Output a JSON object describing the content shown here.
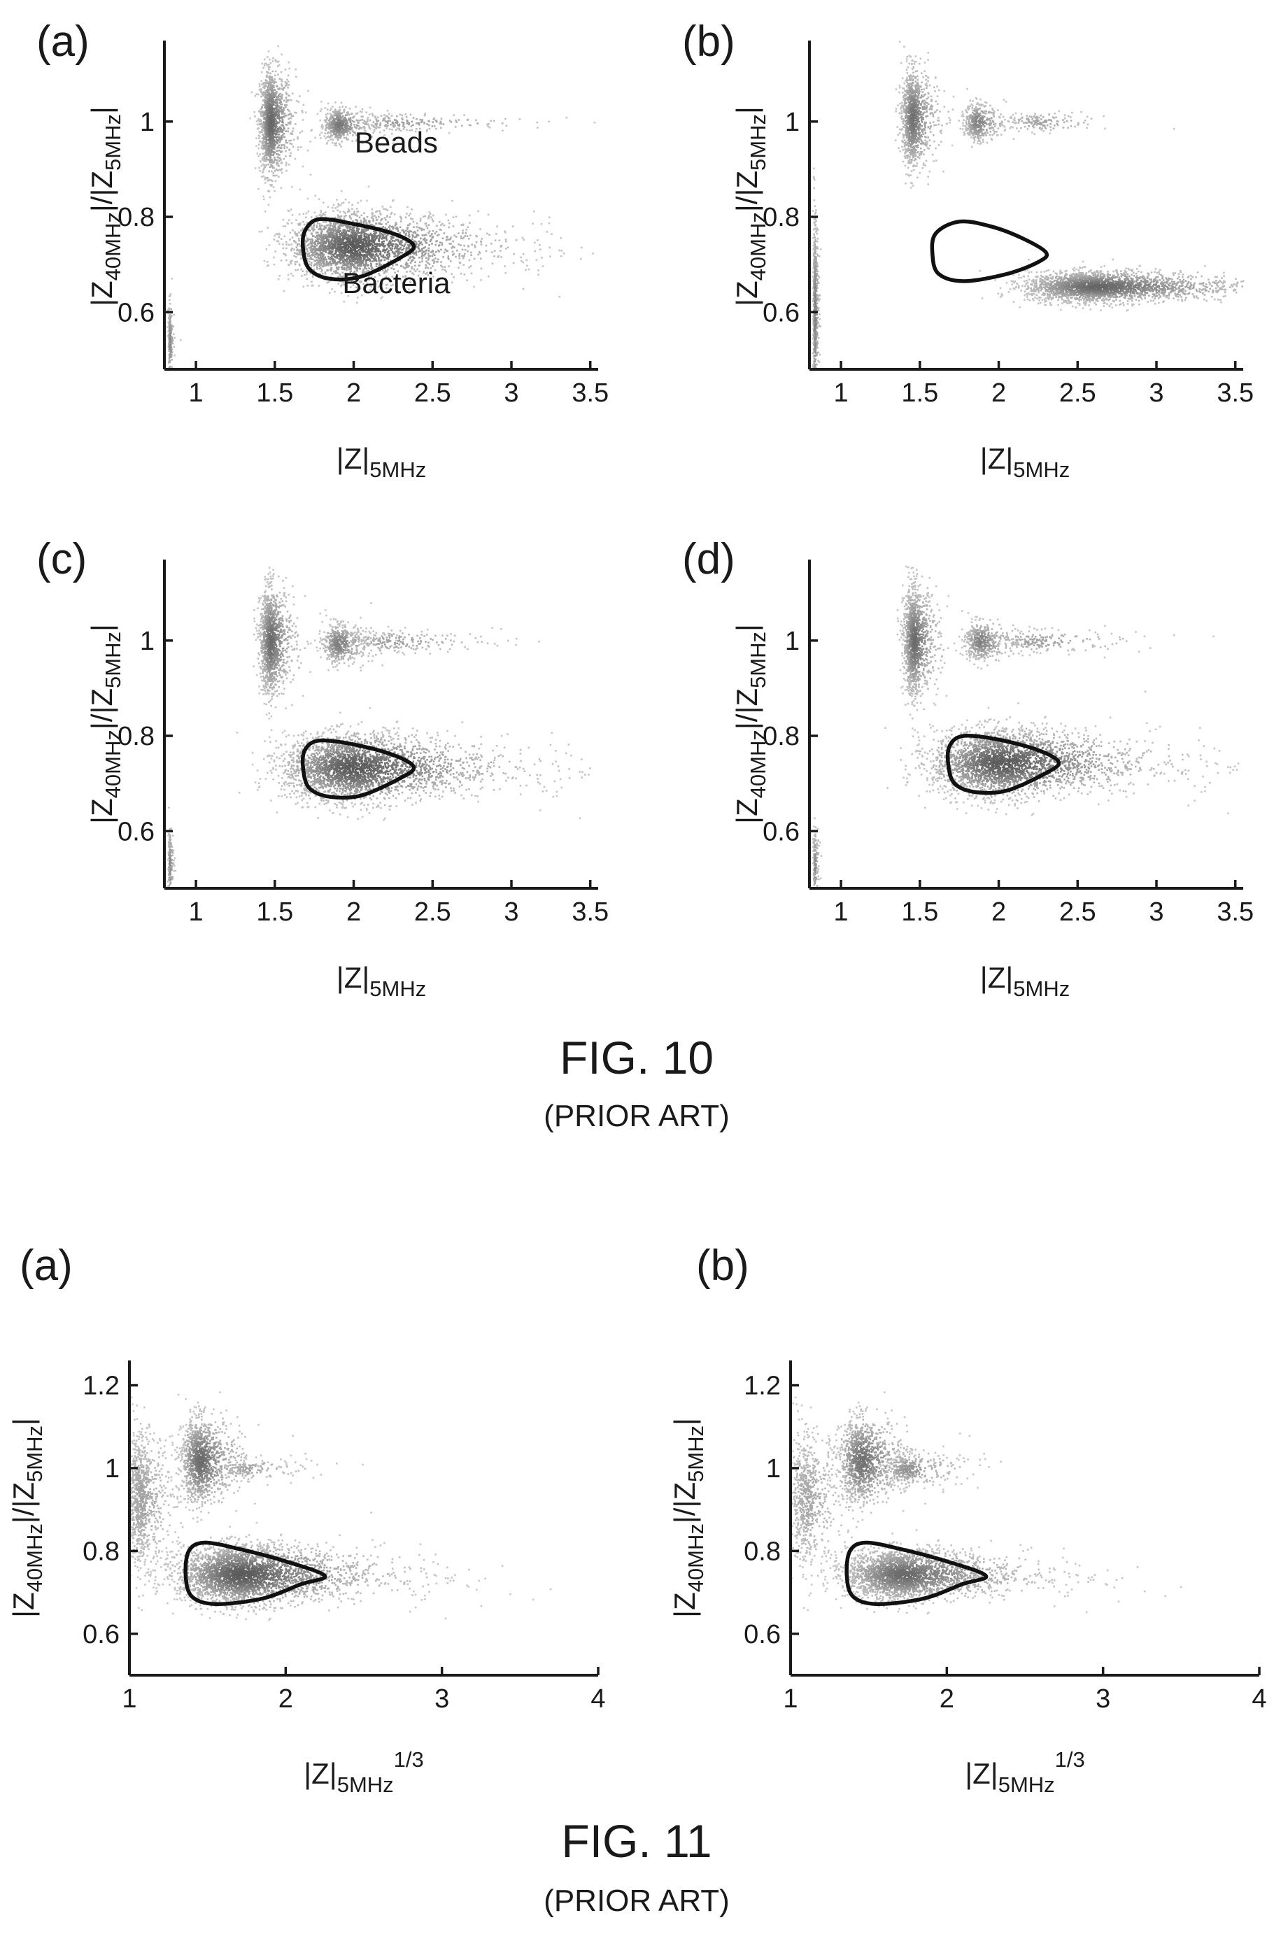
{
  "figures": [
    {
      "title": "FIG. 10",
      "subtitle": "(PRIOR ART)"
    },
    {
      "title": "FIG. 11",
      "subtitle": "(PRIOR ART)"
    }
  ],
  "chart_data": [
    {
      "id": "fig10a",
      "panel": "(a)",
      "type": "scatter",
      "xlabel": {
        "base": "|Z|",
        "sub": "5MHz",
        "sup": ""
      },
      "ylabel": {
        "base": "|Z",
        "sub1": "40MHz",
        "mid": "|/|Z",
        "sub2": "5MHz",
        "end": "|"
      },
      "xlim": [
        0.8,
        3.55
      ],
      "ylim": [
        0.48,
        1.17
      ],
      "xticks": [
        "1",
        "1.5",
        "2",
        "2.5",
        "3",
        "3.5"
      ],
      "yticks": [
        "0.6",
        "0.8",
        "1"
      ],
      "annotations": [
        {
          "text": "Beads",
          "x": 2.27,
          "y": 0.935
        },
        {
          "text": "Bacteria",
          "x": 2.27,
          "y": 0.64
        }
      ],
      "clusters": [
        {
          "label": "Beads",
          "cx": 1.47,
          "cy": 1.0,
          "sx": 0.035,
          "sy": 0.055,
          "n": 1300,
          "intensity": 0.9
        },
        {
          "label": "Beads",
          "cx": 1.9,
          "cy": 0.995,
          "sx": 0.045,
          "sy": 0.018,
          "n": 500,
          "intensity": 0.75
        },
        {
          "label": "Beads",
          "cx": 2.3,
          "cy": 1.0,
          "sx": 0.18,
          "sy": 0.01,
          "n": 200,
          "intensity": 0.4
        },
        {
          "label": "Bacteria",
          "cx": 2.0,
          "cy": 0.74,
          "sx": 0.2,
          "sy": 0.035,
          "n": 2800,
          "intensity": 1.0
        },
        {
          "label": "",
          "cx": 0.83,
          "cy": 0.54,
          "sx": 0.006,
          "sy": 0.04,
          "n": 200,
          "intensity": 0.6
        }
      ],
      "gate": [
        [
          1.72,
          0.69
        ],
        [
          1.85,
          0.67
        ],
        [
          2.05,
          0.675
        ],
        [
          2.3,
          0.715
        ],
        [
          2.38,
          0.74
        ],
        [
          2.25,
          0.765
        ],
        [
          2.0,
          0.785
        ],
        [
          1.78,
          0.795
        ],
        [
          1.69,
          0.77
        ],
        [
          1.68,
          0.73
        ]
      ],
      "gate_filled": false
    },
    {
      "id": "fig10b",
      "panel": "(b)",
      "type": "scatter",
      "xlabel": {
        "base": "|Z|",
        "sub": "5MHz",
        "sup": ""
      },
      "ylabel": {
        "base": "|Z",
        "sub1": "40MHz",
        "mid": "|/|Z",
        "sub2": "5MHz",
        "end": "|"
      },
      "xlim": [
        0.8,
        3.55
      ],
      "ylim": [
        0.48,
        1.17
      ],
      "xticks": [
        "1",
        "1.5",
        "2",
        "2.5",
        "3",
        "3.5"
      ],
      "yticks": [
        "0.6",
        "0.8",
        "1"
      ],
      "annotations": [],
      "clusters": [
        {
          "label": "Beads",
          "cx": 1.45,
          "cy": 1.01,
          "sx": 0.035,
          "sy": 0.05,
          "n": 1100,
          "intensity": 0.8
        },
        {
          "label": "Beads",
          "cx": 1.86,
          "cy": 1.0,
          "sx": 0.04,
          "sy": 0.02,
          "n": 400,
          "intensity": 0.65
        },
        {
          "label": "Beads",
          "cx": 2.25,
          "cy": 1.0,
          "sx": 0.1,
          "sy": 0.01,
          "n": 150,
          "intensity": 0.35
        },
        {
          "label": "Bacteria",
          "cx": 2.62,
          "cy": 0.655,
          "sx": 0.22,
          "sy": 0.016,
          "n": 2400,
          "intensity": 0.9
        },
        {
          "label": "",
          "cx": 0.83,
          "cy": 0.6,
          "sx": 0.006,
          "sy": 0.1,
          "n": 600,
          "intensity": 0.7
        }
      ],
      "gate": [
        [
          1.62,
          0.68
        ],
        [
          1.78,
          0.665
        ],
        [
          2.05,
          0.68
        ],
        [
          2.25,
          0.705
        ],
        [
          2.3,
          0.725
        ],
        [
          2.15,
          0.755
        ],
        [
          1.95,
          0.78
        ],
        [
          1.75,
          0.79
        ],
        [
          1.6,
          0.765
        ],
        [
          1.58,
          0.72
        ]
      ],
      "gate_filled": true
    },
    {
      "id": "fig10c",
      "panel": "(c)",
      "type": "scatter",
      "xlabel": {
        "base": "|Z|",
        "sub": "5MHz",
        "sup": ""
      },
      "ylabel": {
        "base": "|Z",
        "sub1": "40MHz",
        "mid": "|/|Z",
        "sub2": "5MHz",
        "end": "|"
      },
      "xlim": [
        0.8,
        3.55
      ],
      "ylim": [
        0.48,
        1.17
      ],
      "xticks": [
        "1",
        "1.5",
        "2",
        "2.5",
        "3",
        "3.5"
      ],
      "yticks": [
        "0.6",
        "0.8",
        "1"
      ],
      "annotations": [],
      "clusters": [
        {
          "label": "Beads",
          "cx": 1.47,
          "cy": 1.0,
          "sx": 0.035,
          "sy": 0.055,
          "n": 1200,
          "intensity": 0.85
        },
        {
          "label": "Beads",
          "cx": 1.9,
          "cy": 0.995,
          "sx": 0.05,
          "sy": 0.02,
          "n": 500,
          "intensity": 0.7
        },
        {
          "label": "Beads",
          "cx": 2.25,
          "cy": 1.0,
          "sx": 0.15,
          "sy": 0.012,
          "n": 200,
          "intensity": 0.4
        },
        {
          "label": "Bacteria",
          "cx": 2.0,
          "cy": 0.735,
          "sx": 0.22,
          "sy": 0.035,
          "n": 2800,
          "intensity": 1.0
        },
        {
          "label": "",
          "cx": 0.83,
          "cy": 0.53,
          "sx": 0.006,
          "sy": 0.04,
          "n": 150,
          "intensity": 0.6
        }
      ],
      "gate": [
        [
          1.72,
          0.69
        ],
        [
          1.85,
          0.672
        ],
        [
          2.05,
          0.675
        ],
        [
          2.3,
          0.712
        ],
        [
          2.38,
          0.735
        ],
        [
          2.25,
          0.76
        ],
        [
          2.0,
          0.782
        ],
        [
          1.78,
          0.79
        ],
        [
          1.69,
          0.77
        ],
        [
          1.68,
          0.73
        ]
      ],
      "gate_filled": false
    },
    {
      "id": "fig10d",
      "panel": "(d)",
      "type": "scatter",
      "xlabel": {
        "base": "|Z|",
        "sub": "5MHz",
        "sup": ""
      },
      "ylabel": {
        "base": "|Z",
        "sub1": "40MHz",
        "mid": "|/|Z",
        "sub2": "5MHz",
        "end": "|"
      },
      "xlim": [
        0.8,
        3.55
      ],
      "ylim": [
        0.48,
        1.17
      ],
      "xticks": [
        "1",
        "1.5",
        "2",
        "2.5",
        "3",
        "3.5"
      ],
      "yticks": [
        "0.6",
        "0.8",
        "1"
      ],
      "annotations": [],
      "clusters": [
        {
          "label": "Beads",
          "cx": 1.46,
          "cy": 1.0,
          "sx": 0.035,
          "sy": 0.055,
          "n": 1200,
          "intensity": 0.85
        },
        {
          "label": "Beads",
          "cx": 1.88,
          "cy": 1.0,
          "sx": 0.05,
          "sy": 0.02,
          "n": 450,
          "intensity": 0.65
        },
        {
          "label": "Beads",
          "cx": 2.25,
          "cy": 1.0,
          "sx": 0.15,
          "sy": 0.012,
          "n": 180,
          "intensity": 0.4
        },
        {
          "label": "Bacteria",
          "cx": 2.02,
          "cy": 0.745,
          "sx": 0.22,
          "sy": 0.035,
          "n": 2800,
          "intensity": 1.0
        },
        {
          "label": "",
          "cx": 0.83,
          "cy": 0.53,
          "sx": 0.006,
          "sy": 0.04,
          "n": 150,
          "intensity": 0.6
        }
      ],
      "gate": [
        [
          1.72,
          0.7
        ],
        [
          1.85,
          0.682
        ],
        [
          2.05,
          0.685
        ],
        [
          2.3,
          0.722
        ],
        [
          2.38,
          0.745
        ],
        [
          2.25,
          0.77
        ],
        [
          2.0,
          0.792
        ],
        [
          1.78,
          0.8
        ],
        [
          1.69,
          0.78
        ],
        [
          1.68,
          0.74
        ]
      ],
      "gate_filled": false
    },
    {
      "id": "fig11a",
      "panel": "(a)",
      "type": "scatter",
      "xlabel": {
        "base": "|Z|",
        "sub": "5MHz",
        "sup": "1/3"
      },
      "ylabel": {
        "base": "|Z",
        "sub1": "40MHz",
        "mid": "|/|Z",
        "sub2": "5MHz",
        "end": "|"
      },
      "xlim": [
        1,
        4
      ],
      "ylim": [
        0.5,
        1.26
      ],
      "xticks": [
        "1",
        "2",
        "3",
        "4"
      ],
      "yticks": [
        "0.6",
        "0.8",
        "1",
        "1.2"
      ],
      "annotations": [],
      "clusters": [
        {
          "label": "",
          "cx": 1.07,
          "cy": 0.93,
          "sx": 0.05,
          "sy": 0.08,
          "n": 900,
          "intensity": 0.35
        },
        {
          "label": "Beads",
          "cx": 1.45,
          "cy": 1.02,
          "sx": 0.06,
          "sy": 0.05,
          "n": 1200,
          "intensity": 0.85
        },
        {
          "label": "Beads",
          "cx": 1.75,
          "cy": 1.0,
          "sx": 0.1,
          "sy": 0.012,
          "n": 150,
          "intensity": 0.35
        },
        {
          "label": "Bacteria",
          "cx": 1.72,
          "cy": 0.745,
          "sx": 0.2,
          "sy": 0.035,
          "n": 3200,
          "intensity": 1.0
        }
      ],
      "gate": [
        [
          1.4,
          0.69
        ],
        [
          1.55,
          0.672
        ],
        [
          1.85,
          0.685
        ],
        [
          2.1,
          0.72
        ],
        [
          2.25,
          0.74
        ],
        [
          2.0,
          0.775
        ],
        [
          1.7,
          0.805
        ],
        [
          1.48,
          0.82
        ],
        [
          1.38,
          0.8
        ],
        [
          1.36,
          0.74
        ]
      ],
      "gate_filled": false
    },
    {
      "id": "fig11b",
      "panel": "(b)",
      "type": "scatter",
      "xlabel": {
        "base": "|Z|",
        "sub": "5MHz",
        "sup": "1/3"
      },
      "ylabel": {
        "base": "|Z",
        "sub1": "40MHz",
        "mid": "|/|Z",
        "sub2": "5MHz",
        "end": "|"
      },
      "xlim": [
        1,
        4
      ],
      "ylim": [
        0.5,
        1.26
      ],
      "xticks": [
        "1",
        "2",
        "3",
        "4"
      ],
      "yticks": [
        "0.6",
        "0.8",
        "1",
        "1.2"
      ],
      "annotations": [],
      "clusters": [
        {
          "label": "",
          "cx": 1.1,
          "cy": 0.93,
          "sx": 0.06,
          "sy": 0.08,
          "n": 700,
          "intensity": 0.3
        },
        {
          "label": "Beads",
          "cx": 1.45,
          "cy": 1.02,
          "sx": 0.07,
          "sy": 0.05,
          "n": 1100,
          "intensity": 0.8
        },
        {
          "label": "Beads",
          "cx": 1.75,
          "cy": 1.0,
          "sx": 0.08,
          "sy": 0.02,
          "n": 350,
          "intensity": 0.5
        },
        {
          "label": "Bacteria",
          "cx": 1.72,
          "cy": 0.745,
          "sx": 0.18,
          "sy": 0.03,
          "n": 2600,
          "intensity": 0.85
        }
      ],
      "gate": [
        [
          1.4,
          0.69
        ],
        [
          1.55,
          0.672
        ],
        [
          1.85,
          0.685
        ],
        [
          2.1,
          0.72
        ],
        [
          2.25,
          0.74
        ],
        [
          2.0,
          0.775
        ],
        [
          1.7,
          0.805
        ],
        [
          1.48,
          0.82
        ],
        [
          1.38,
          0.8
        ],
        [
          1.36,
          0.74
        ]
      ],
      "gate_filled": false
    }
  ]
}
